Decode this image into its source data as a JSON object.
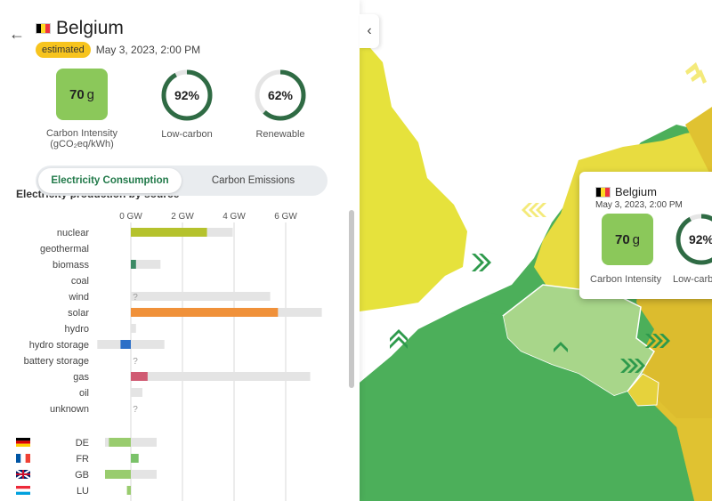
{
  "panel": {
    "country": "Belgium",
    "flag_colors": [
      "#000000",
      "#FDDA24",
      "#EF3340"
    ],
    "badge": "estimated",
    "date": "May 3, 2023, 2:00 PM",
    "carbon_intensity": {
      "value": "70",
      "unit": "g",
      "label_line1": "Carbon Intensity",
      "label_line2": "(gCO₂eq/kWh)"
    },
    "low_carbon": {
      "value": "92%",
      "percent": 92,
      "label": "Low-carbon"
    },
    "renewable": {
      "value": "62%",
      "percent": 62,
      "label": "Renewable"
    },
    "toggle": {
      "consumption": "Electricity Consumption",
      "emissions": "Carbon Emissions"
    },
    "chart_title": "Electricity production by source",
    "collapse_icon": "chevron-left-icon",
    "back_icon": "arrow-left-icon"
  },
  "chart_data": {
    "type": "bar",
    "title": "Electricity production by source",
    "xlabel": "GW",
    "xlim": [
      -1.3,
      7.5
    ],
    "ticks": [
      "0 GW",
      "2 GW",
      "4 GW",
      "6 GW"
    ],
    "tick_values": [
      0,
      2,
      4,
      6
    ],
    "categories": [
      "nuclear",
      "geothermal",
      "biomass",
      "coal",
      "wind",
      "solar",
      "hydro",
      "hydro storage",
      "battery storage",
      "gas",
      "oil",
      "unknown"
    ],
    "series": [
      {
        "name": "production",
        "values": [
          2.95,
          null,
          0.2,
          null,
          null,
          5.7,
          0.0,
          -0.4,
          null,
          0.65,
          0.0,
          null
        ]
      },
      {
        "name": "capacity",
        "values": [
          3.95,
          null,
          1.15,
          null,
          5.4,
          7.4,
          0.2,
          1.3,
          null,
          6.95,
          0.45,
          null
        ]
      },
      {
        "name": "capacity_negative",
        "values": [
          0,
          0,
          0,
          0,
          0,
          0,
          0,
          -1.3,
          0,
          0,
          0,
          0
        ]
      }
    ],
    "unknown_markers": [
      "wind",
      "battery storage",
      "unknown"
    ],
    "colors": {
      "nuclear": "#b5c22d",
      "biomass": "#3c8a65",
      "solar": "#f0913a",
      "hydro storage": "#2c6fc7",
      "gas": "#d05b73",
      "capacity": "#e4e4e4",
      "grid": "#d9d9d9"
    },
    "unknown_symbol": "?",
    "exchanges": [
      {
        "code": "DE",
        "value": -0.85,
        "capacity_min": -1.0,
        "capacity_max": 1.0,
        "flag": [
          "#000000",
          "#DD0000",
          "#FFCE00"
        ],
        "flag_dir": "h",
        "color": "#99cc6e"
      },
      {
        "code": "FR",
        "value": 0.3,
        "capacity_min": 0,
        "capacity_max": 0.3,
        "flag": [
          "#0055A4",
          "#FFFFFF",
          "#EF4135"
        ],
        "flag_dir": "v",
        "color": "#7bc26a"
      },
      {
        "code": "GB",
        "value": -1.0,
        "capacity_min": -1.0,
        "capacity_max": 1.0,
        "flag": [
          "#012169",
          "#FFFFFF",
          "#C8102E"
        ],
        "flag_dir": "uk",
        "color": "#99cc6e"
      },
      {
        "code": "LU",
        "value": -0.15,
        "capacity_min": -0.15,
        "capacity_max": 0,
        "flag": [
          "#ED2939",
          "#FFFFFF",
          "#00A1DE"
        ],
        "flag_dir": "h",
        "color": "#99cc6e"
      }
    ]
  },
  "tooltip": {
    "country": "Belgium",
    "date": "May 3, 2023, 2:00 PM",
    "ci_value": "70",
    "ci_unit": "g",
    "ci_label": "Carbon Intensity",
    "low_carbon_value": "92%",
    "low_carbon_percent": 92,
    "low_carbon_label": "Low-carbon"
  },
  "colors": {
    "map_green": "#4caf5a",
    "map_light_green": "#a8d68a",
    "map_yellow": "#e6d23c",
    "map_gold": "#e0c231",
    "ring_track": "#e5e5e5",
    "ring_fill": "#2f6b44",
    "wind_arrow": "#2e9a4c",
    "wind_arrow_yellow": "#f4ea7a"
  }
}
